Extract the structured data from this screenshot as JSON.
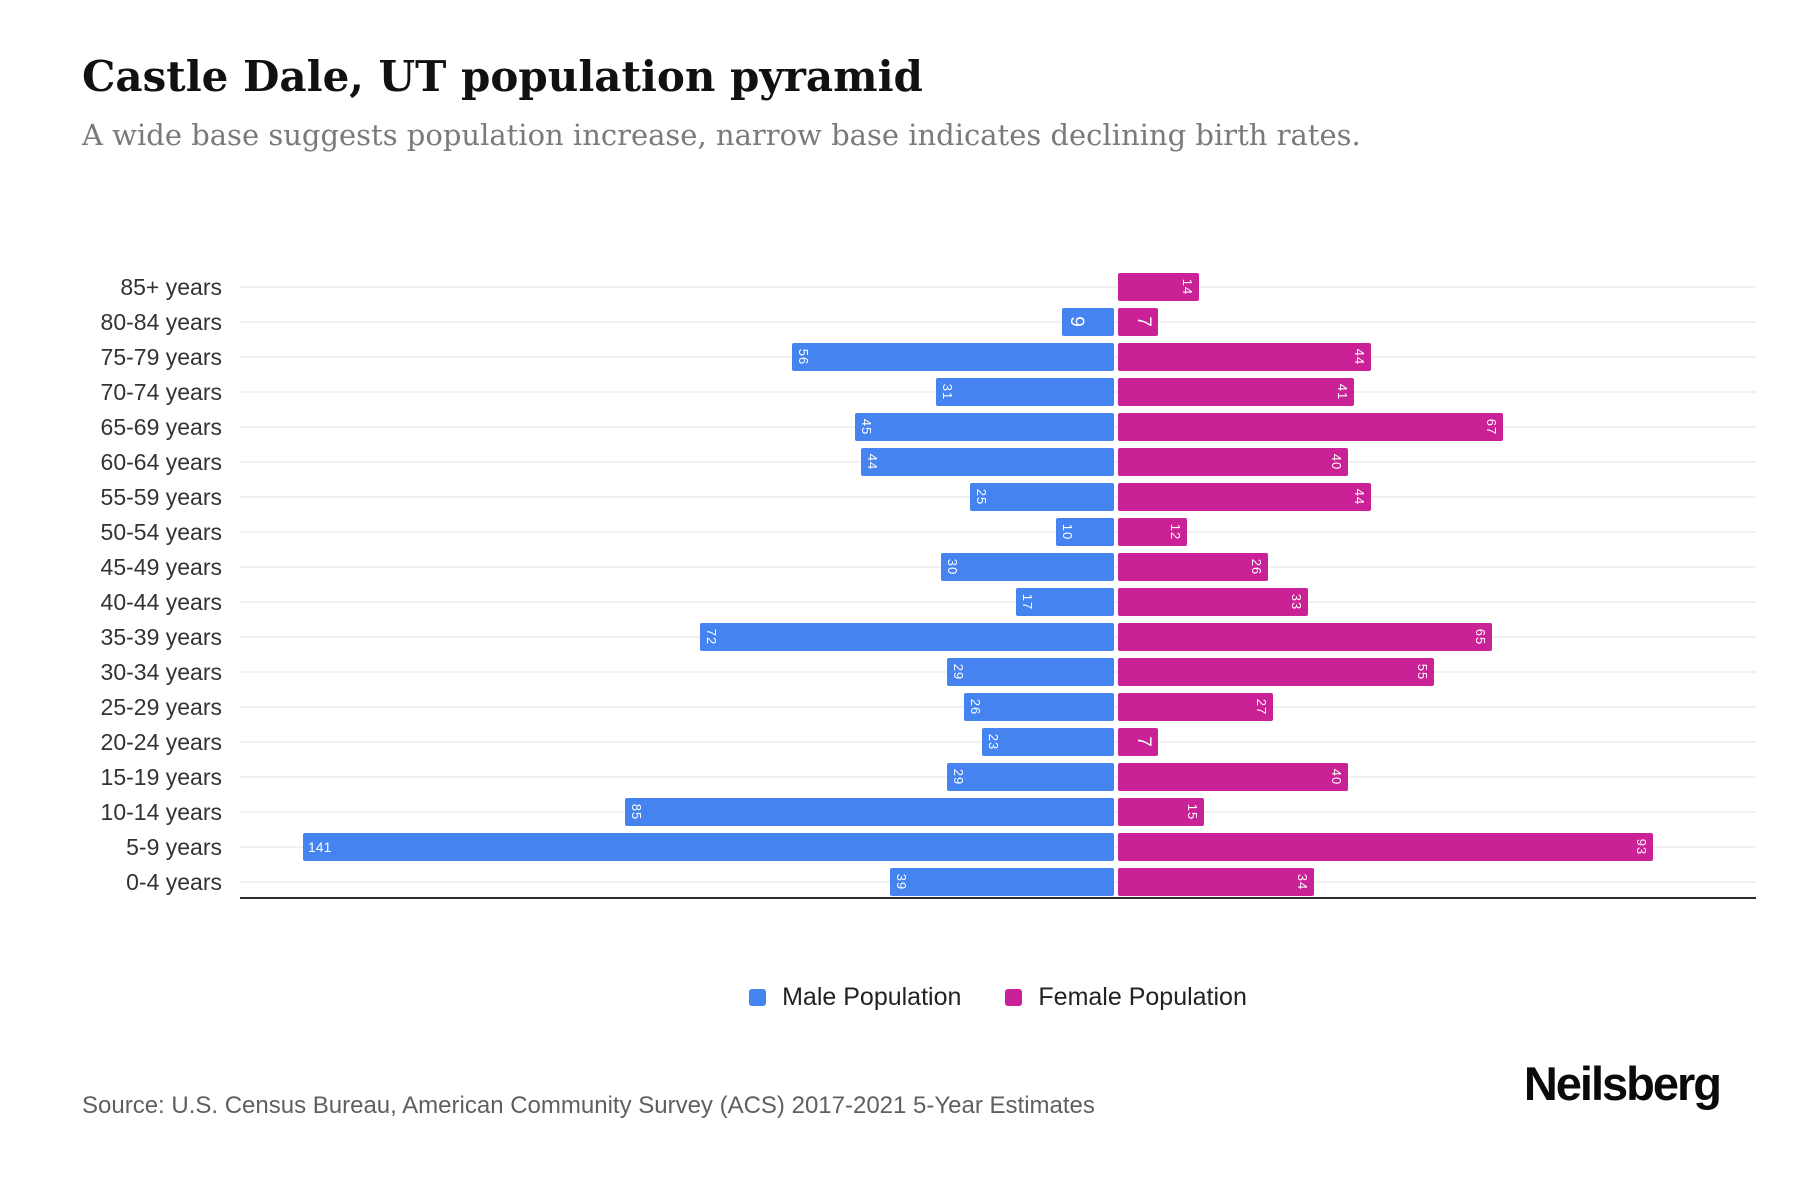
{
  "header": {
    "title": "Castle Dale, UT population pyramid",
    "subtitle": "A wide base suggests population increase, narrow base indicates declining birth rates."
  },
  "legend": {
    "male_label": "Male Population",
    "female_label": "Female Population"
  },
  "footer": {
    "source": "Source: U.S. Census Bureau, American Community Survey (ACS) 2017-2021 5-Year Estimates",
    "brand": "Neilsberg"
  },
  "colors": {
    "male": "#4583f1",
    "female": "#cb2196",
    "grid": "#f1f1f1",
    "axis": "#2e2e2e"
  },
  "chart_data": {
    "type": "bar",
    "subtype": "population-pyramid",
    "orientation": "horizontal",
    "grid": true,
    "legend_position": "bottom",
    "categories": [
      "85+ years",
      "80-84 years",
      "75-79 years",
      "70-74 years",
      "65-69 years",
      "60-64 years",
      "55-59 years",
      "50-54 years",
      "45-49 years",
      "40-44 years",
      "35-39 years",
      "30-34 years",
      "25-29 years",
      "20-24 years",
      "15-19 years",
      "10-14 years",
      "5-9 years",
      "0-4 years"
    ],
    "series": [
      {
        "name": "Male Population",
        "side": "left",
        "values": [
          0,
          9,
          56,
          31,
          45,
          44,
          25,
          10,
          30,
          17,
          72,
          29,
          26,
          23,
          29,
          85,
          141,
          39
        ]
      },
      {
        "name": "Female Population",
        "side": "right",
        "values": [
          14,
          7,
          44,
          41,
          67,
          40,
          44,
          12,
          26,
          33,
          65,
          55,
          27,
          7,
          40,
          15,
          93,
          34
        ]
      }
    ],
    "value_labels": "inside-outer-end",
    "xlim_left_max": 150,
    "xlim_right_max": 110
  }
}
